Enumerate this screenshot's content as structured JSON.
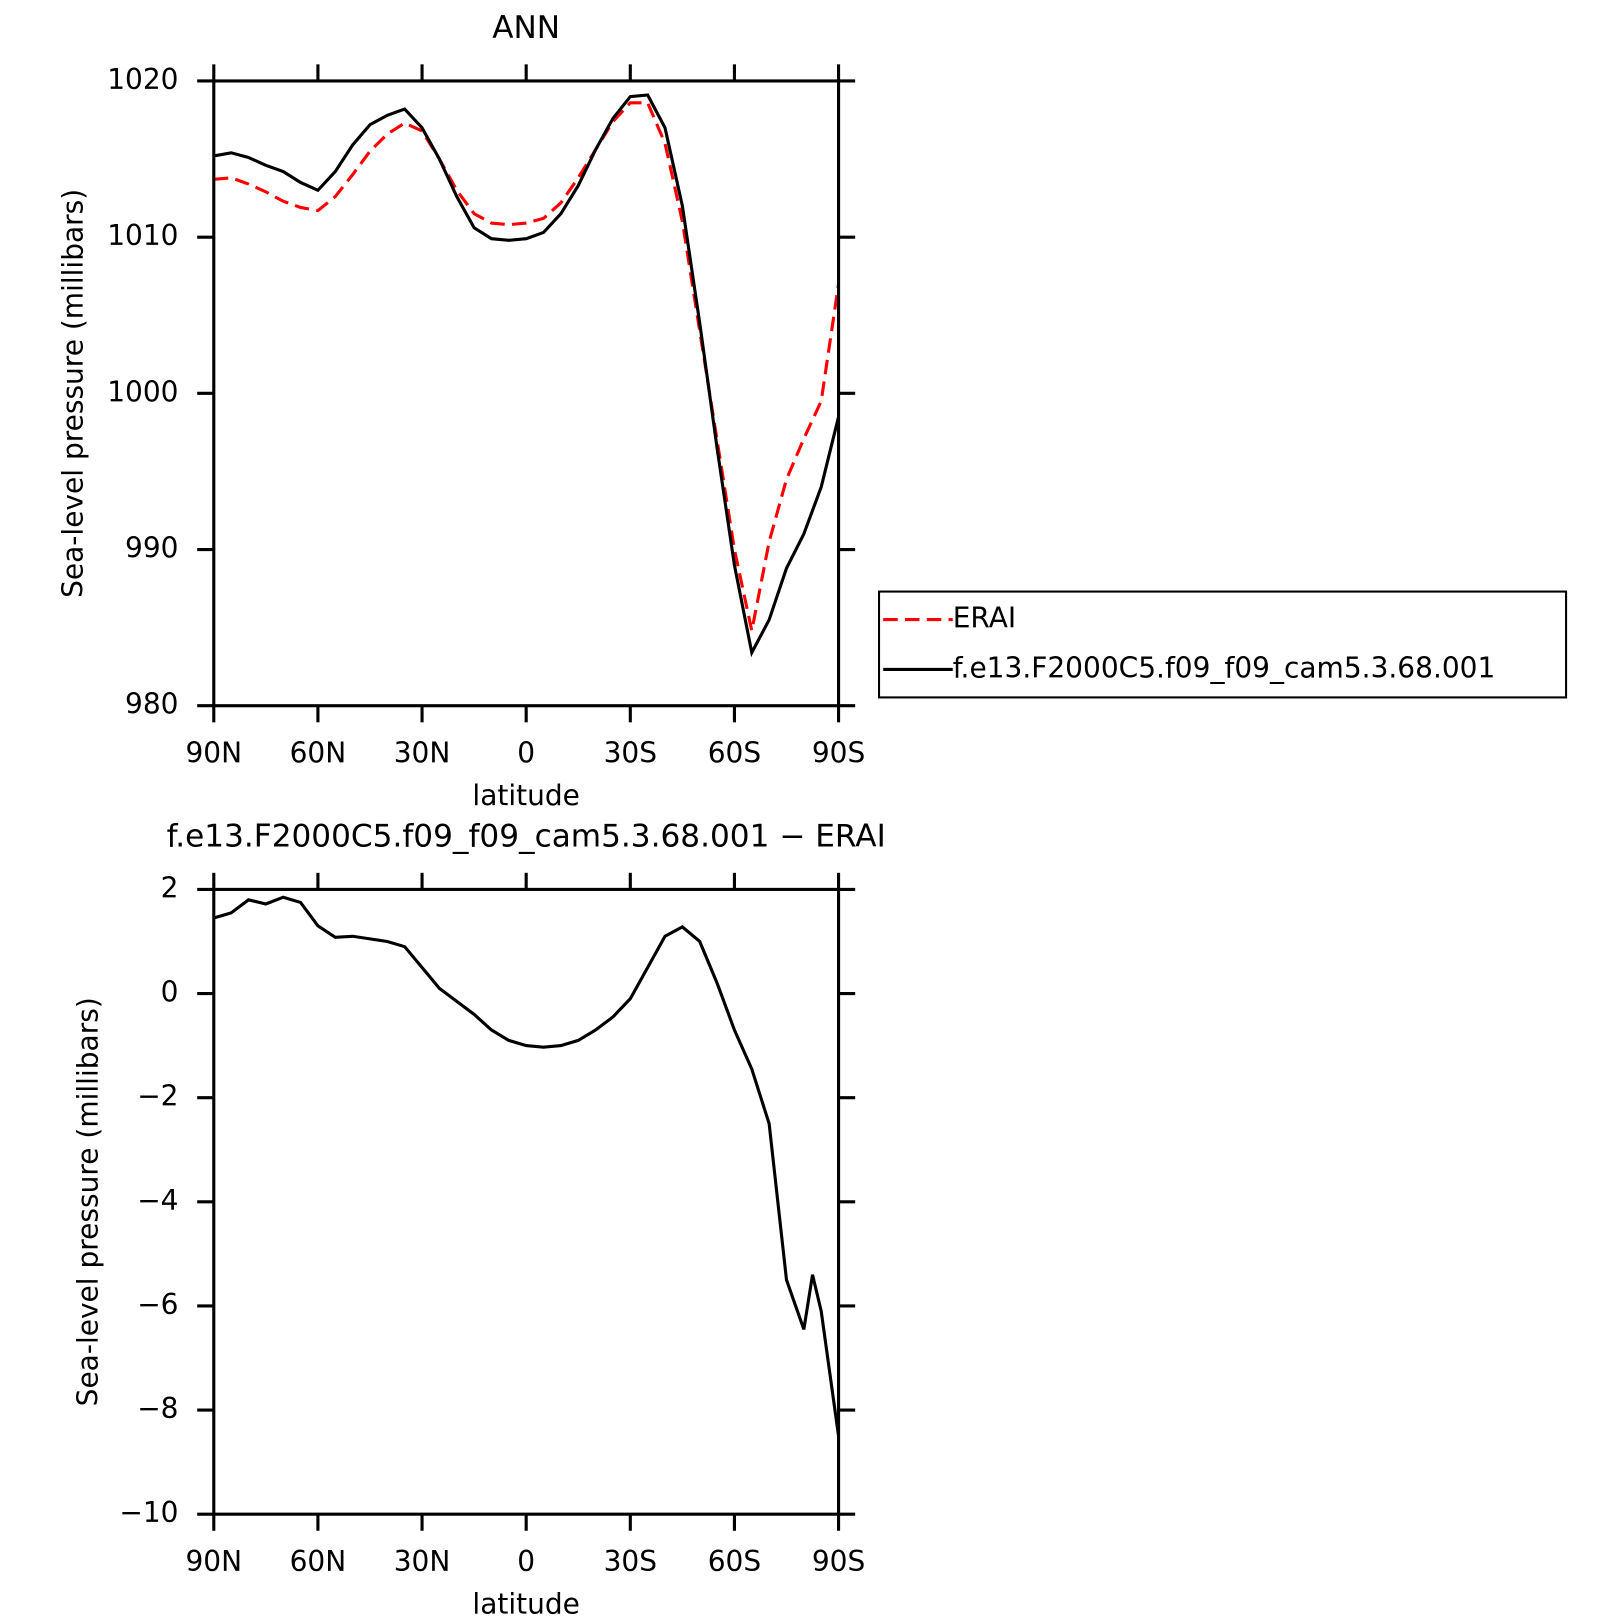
{
  "chart_data": [
    {
      "type": "line",
      "title": "ANN",
      "xlabel": "latitude",
      "ylabel": "Sea-level pressure (millibars)",
      "x": [
        90,
        85,
        80,
        75,
        70,
        65,
        60,
        55,
        50,
        45,
        40,
        35,
        30,
        25,
        20,
        15,
        10,
        5,
        0,
        -5,
        -10,
        -15,
        -20,
        -25,
        -30,
        -35,
        -40,
        -45,
        -50,
        -55,
        -60,
        -65,
        -70,
        -75,
        -80,
        -85,
        -90
      ],
      "series": [
        {
          "name": "ERAI",
          "color": "#ff0000",
          "linestyle": "dashed",
          "values": [
            1013.7,
            1013.8,
            1013.4,
            1012.9,
            1012.3,
            1011.9,
            1011.7,
            1012.6,
            1014.0,
            1015.5,
            1016.6,
            1017.3,
            1016.8,
            1015.0,
            1013.0,
            1011.5,
            1010.9,
            1010.8,
            1010.9,
            1011.2,
            1012.2,
            1013.8,
            1015.6,
            1017.4,
            1018.6,
            1018.6,
            1016.0,
            1011.0,
            1004.0,
            997.0,
            990.0,
            984.8,
            990.5,
            994.5,
            997.1,
            999.5,
            1007.0
          ]
        },
        {
          "name": "f.e13.F2000C5.f09_f09_cam5.3.68.001",
          "color": "#000000",
          "linestyle": "solid",
          "values": [
            1015.2,
            1015.4,
            1015.1,
            1014.6,
            1014.2,
            1013.5,
            1013.0,
            1014.2,
            1015.9,
            1017.2,
            1017.8,
            1018.2,
            1017.0,
            1015.0,
            1012.6,
            1010.6,
            1009.9,
            1009.8,
            1009.9,
            1010.3,
            1011.5,
            1013.3,
            1015.6,
            1017.6,
            1019.0,
            1019.1,
            1017.0,
            1012.0,
            1004.5,
            996.5,
            989.0,
            983.4,
            985.5,
            988.8,
            991.0,
            994.0,
            998.5
          ]
        }
      ],
      "xlim": [
        90,
        -90
      ],
      "xticks": [
        {
          "value": 90,
          "label": "90N"
        },
        {
          "value": 60,
          "label": "60N"
        },
        {
          "value": 30,
          "label": "30N"
        },
        0,
        {
          "value": -30,
          "label": "30S"
        },
        {
          "value": -60,
          "label": "60S"
        },
        {
          "value": -90,
          "label": "90S"
        }
      ],
      "ylim": [
        980,
        1020
      ],
      "yticks": [
        980,
        990,
        1000,
        1010,
        1020
      ],
      "legend": "right"
    },
    {
      "type": "line",
      "title": "f.e13.F2000C5.f09_f09_cam5.3.68.001 − ERAI",
      "xlabel": "latitude",
      "ylabel": "Sea-level pressure (millibars)",
      "x": [
        90,
        85,
        80,
        75,
        70,
        65,
        60,
        55,
        50,
        45,
        40,
        35,
        30,
        25,
        20,
        15,
        10,
        5,
        0,
        -5,
        -10,
        -15,
        -20,
        -25,
        -30,
        -35,
        -40,
        -45,
        -50,
        -55,
        -60,
        -65,
        -70,
        -75,
        -80,
        -82.5,
        -85,
        -90
      ],
      "series": [
        {
          "color": "#000000",
          "linestyle": "solid",
          "values": [
            1.45,
            1.55,
            1.8,
            1.72,
            1.85,
            1.75,
            1.3,
            1.08,
            1.1,
            1.05,
            1.0,
            0.9,
            0.5,
            0.1,
            -0.15,
            -0.4,
            -0.7,
            -0.9,
            -1.0,
            -1.03,
            -1.0,
            -0.9,
            -0.7,
            -0.45,
            -0.1,
            0.5,
            1.1,
            1.28,
            1.0,
            0.2,
            -0.7,
            -1.45,
            -2.5,
            -5.5,
            -6.45,
            -5.4,
            -6.1,
            -8.5
          ]
        }
      ],
      "xlim": [
        90,
        -90
      ],
      "xticks": [
        {
          "value": 90,
          "label": "90N"
        },
        {
          "value": 60,
          "label": "60N"
        },
        {
          "value": 30,
          "label": "30N"
        },
        0,
        {
          "value": -30,
          "label": "30S"
        },
        {
          "value": -60,
          "label": "60S"
        },
        {
          "value": -90,
          "label": "90S"
        }
      ],
      "ylim": [
        -10,
        2
      ],
      "yticks": [
        {
          "value": -10,
          "label": "−10"
        },
        {
          "value": -8,
          "label": "−8"
        },
        {
          "value": -6,
          "label": "−6"
        },
        {
          "value": -4,
          "label": "−4"
        },
        {
          "value": -2,
          "label": "−2"
        },
        0,
        2
      ]
    }
  ]
}
